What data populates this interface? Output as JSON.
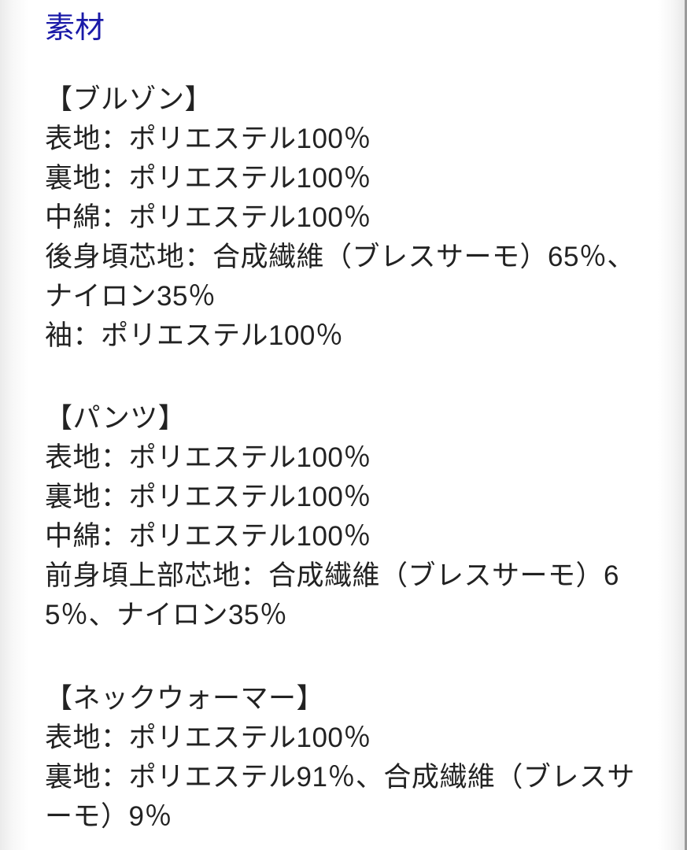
{
  "page": {
    "title": "素材",
    "colors": {
      "title_link_blue": "#1a1aa8",
      "body_text": "#222222",
      "page_shadow": "#ebebeb",
      "right_edge_line": "#9a9a9a",
      "background": "#ffffff"
    }
  },
  "sections": [
    {
      "header": "【ブルゾン】",
      "lines": [
        "表地：ポリエステル100％",
        "裏地：ポリエステル100％",
        "中綿：ポリエステル100％",
        "後身頃芯地：合成繊維（ブレスサーモ）65％、",
        "ナイロン35％",
        "袖：ポリエステル100％"
      ]
    },
    {
      "header": "【パンツ】",
      "lines": [
        "表地：ポリエステル100％",
        "裏地：ポリエステル100％",
        "中綿：ポリエステル100％",
        "前身頃上部芯地：合成繊維（ブレスサーモ）6",
        "5％、ナイロン35％"
      ]
    },
    {
      "header": "【ネックウォーマー】",
      "lines": [
        "表地：ポリエステル100％",
        "裏地：ポリエステル91％、合成繊維（ブレスサ",
        "ーモ）9％"
      ]
    }
  ]
}
